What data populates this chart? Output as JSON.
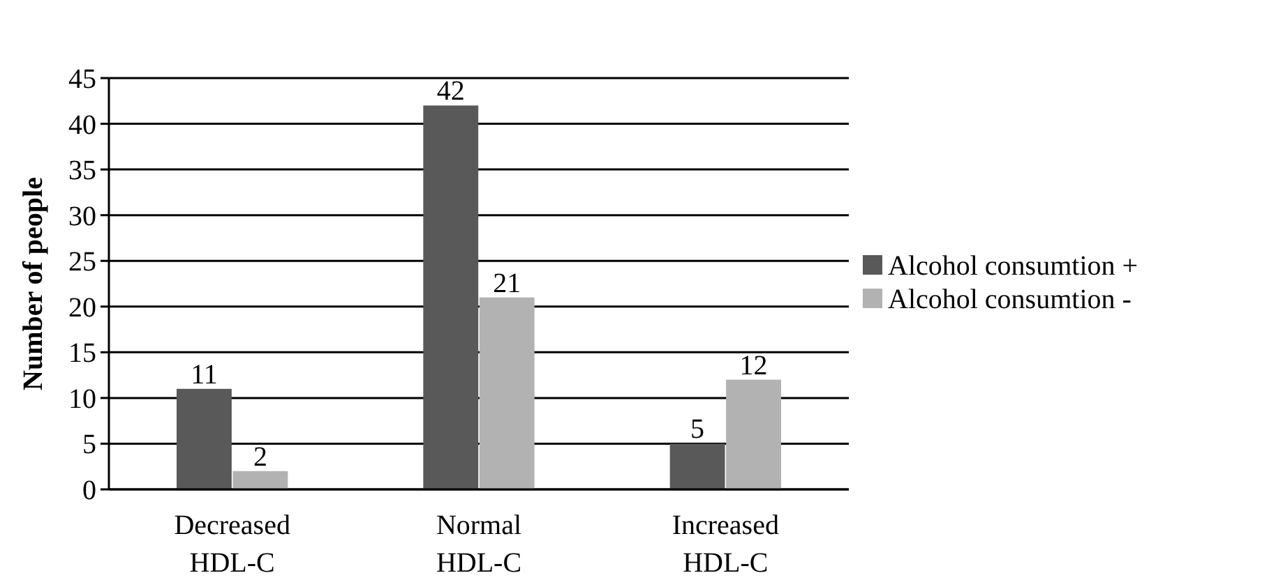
{
  "chart_data": {
    "type": "bar",
    "ylabel": "Number of people",
    "categories": [
      "Decreased HDL-C",
      "Normal HDL-C",
      "Increased HDL-C"
    ],
    "series": [
      {
        "name": "Alcohol consumtion +",
        "color": "#595959",
        "values": [
          11,
          42,
          5
        ]
      },
      {
        "name": "Alcohol consumtion -",
        "color": "#b2b2b2",
        "values": [
          2,
          21,
          12
        ]
      }
    ],
    "ylim": [
      0,
      45
    ],
    "yticks": [
      0,
      5,
      10,
      15,
      20,
      25,
      30,
      35,
      40,
      45
    ],
    "grid": "y",
    "legend": "right",
    "data_labels": true
  }
}
